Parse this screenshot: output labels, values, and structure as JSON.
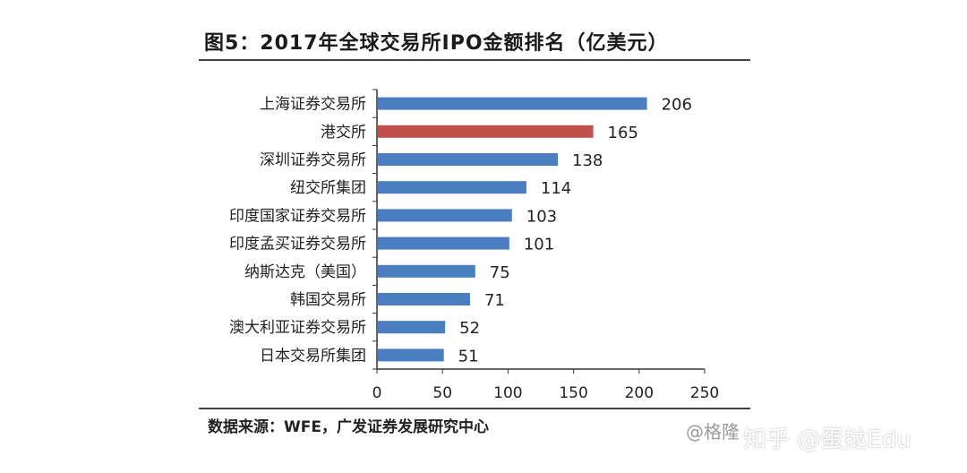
{
  "title": "图5：2017年全球交易所IPO金额排名（亿美元）",
  "source": "数据来源：WFE，广发证券发展研究中心",
  "watermark": "@格隆",
  "watermark2": "知乎 @蛋挞Edu",
  "colors": {
    "bar": "#4a7ec1",
    "highlight": "#c0504d",
    "axis": "#333333"
  },
  "chart_data": {
    "type": "bar",
    "orientation": "horizontal",
    "title": "图5：2017年全球交易所IPO金额排名（亿美元）",
    "categories": [
      "上海证券交易所",
      "港交所",
      "深圳证券交易所",
      "纽交所集团",
      "印度国家证券交易所",
      "印度孟买证券交易所",
      "纳斯达克（美国）",
      "韩国交易所",
      "澳大利亚证券交易所",
      "日本交易所集团"
    ],
    "values": [
      206,
      165,
      138,
      114,
      103,
      101,
      75,
      71,
      52,
      51
    ],
    "highlight_index": 1,
    "xlim": [
      0,
      250
    ],
    "xticks": [
      0,
      50,
      100,
      150,
      200,
      250
    ],
    "xlabel": "",
    "ylabel": "",
    "grid": false,
    "legend": "none"
  }
}
